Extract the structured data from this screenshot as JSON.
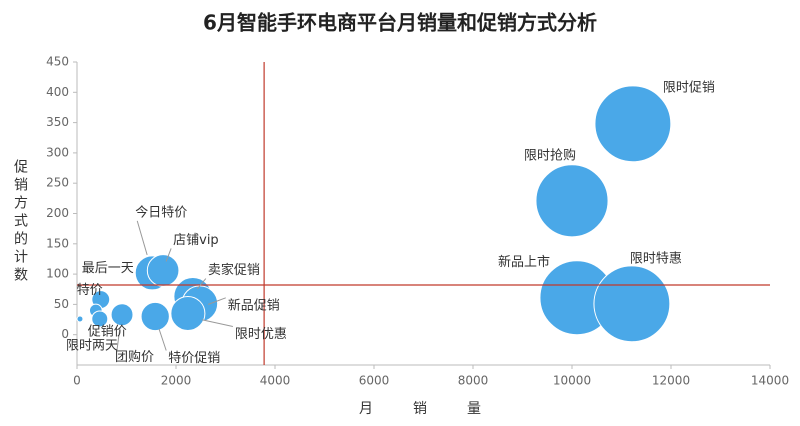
{
  "chart_data": {
    "type": "bubble",
    "title": "6月智能手环电商平台月销量和促销方式分析",
    "x_label": "月销量",
    "y_label": "促销方式的计数",
    "xlim": [
      0,
      14000
    ],
    "xticks": [
      0,
      2000,
      4000,
      6000,
      8000,
      10000,
      12000,
      14000
    ],
    "ylim": [
      -50,
      450
    ],
    "yticks": [
      0,
      50,
      100,
      150,
      200,
      250,
      300,
      350,
      400,
      450
    ],
    "reference_lines": {
      "x": 3780,
      "y": 82,
      "color": "#c0392b"
    },
    "series": [
      {
        "color": "#4aa8e8",
        "labels": [
          "限时促销",
          "限时抢购",
          "新品上市",
          "限时特惠",
          "今日特价",
          "店铺vip",
          "卖家促销",
          "新品促销",
          "限时优惠",
          "特价促销",
          "团购价",
          "最后一天",
          "特价",
          "促销价",
          "限时两天"
        ],
        "x": [
          11230,
          10000,
          10100,
          11210,
          1520,
          1740,
          2340,
          2480,
          2240,
          1580,
          910,
          480,
          380,
          460,
          60
        ],
        "values": [
          348,
          221,
          61,
          51,
          102,
          106,
          63,
          51,
          35,
          30,
          33,
          58,
          40,
          26,
          26
        ],
        "sizes": [
          1440,
          1300,
          1370,
          1440,
          290,
          250,
          360,
          320,
          290,
          200,
          120,
          80,
          40,
          64,
          9
        ]
      }
    ]
  }
}
